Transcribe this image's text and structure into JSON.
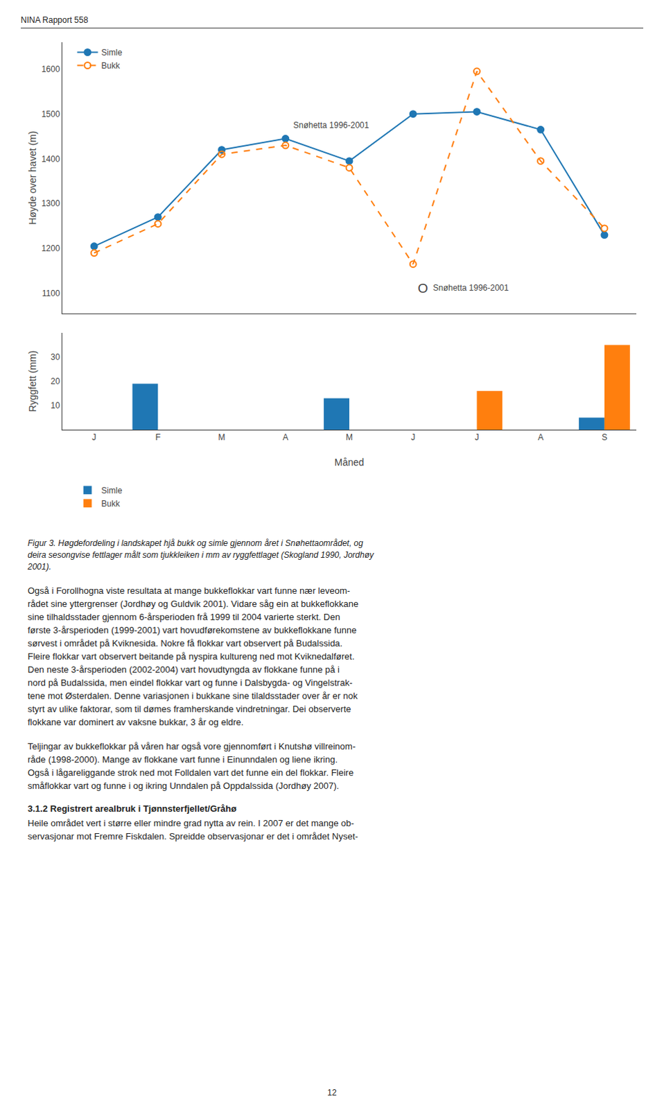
{
  "header": "NINA Rapport 558",
  "chart_data": [
    {
      "type": "line",
      "x": [
        0,
        1,
        2,
        3,
        4,
        5,
        6,
        7,
        8
      ],
      "xlim": [
        -0.5,
        8.5
      ],
      "ylabel": "Høyde over havet (m)",
      "ylim": [
        1055,
        1660
      ],
      "yticks": [
        1100,
        1200,
        1300,
        1400,
        1500,
        1600
      ],
      "tick_labels": "y",
      "grid": false,
      "legend": "upper left",
      "series": [
        {
          "name": "Simle",
          "color": "#1f77b4",
          "marker": "circle",
          "line_style": "solid",
          "values": [
            1205,
            1270,
            1420,
            1445,
            1395,
            1500,
            1505,
            1465,
            1230
          ]
        },
        {
          "name": "Bukk",
          "color": "#ff7f0e",
          "marker": "circle-open",
          "line_style": "dash",
          "values": [
            1190,
            1255,
            1410,
            1430,
            1380,
            1165,
            1595,
            1395,
            1245
          ]
        }
      ],
      "annotations": [
        {
          "text": "Snøhetta 1996-2001",
          "x": 3.1,
          "y": 1475
        },
        {
          "symbol": "O",
          "text": "Snøhetta 1996-2001",
          "x": 5.05,
          "y": 1112
        }
      ]
    },
    {
      "type": "bar",
      "categories": [
        "J",
        "F",
        "M",
        "A",
        "M",
        "J",
        "J",
        "A",
        "S"
      ],
      "xlabel": "Måned",
      "ylabel": "Ryggfett (mm)",
      "ylim": [
        0,
        40
      ],
      "yticks": [
        10,
        20,
        30
      ],
      "grid": false,
      "legend": "bottom",
      "series": [
        {
          "name": "Simle",
          "color": "#1f77b4",
          "values": [
            0,
            19,
            0,
            0,
            13,
            0,
            0,
            0,
            5
          ]
        },
        {
          "name": "Bukk",
          "color": "#ff7f0e",
          "values": [
            0,
            0,
            0,
            0,
            0,
            0,
            16,
            0,
            35
          ]
        }
      ]
    }
  ],
  "caption": [
    "Figur 3.  Høgdefordeling i landskapet hjå bukk og simle gjennom året i Snøhettaområdet, og",
    "deira sesongvise fettlager målt som tjukkleiken i mm av ryggfettlaget (Skogland 1990, Jordhøy",
    "2001)."
  ],
  "body": [
    {
      "lines": [
        "Også i Forollhogna viste resultata at mange bukkeflokkar vart funne nær leveom-",
        "rådet sine yttergrenser (Jordhøy og Guldvik 2001). Vidare såg ein at bukkeflokkane",
        "sine tilhaldsstader gjennom 6-årsperioden frå 1999 til 2004 varierte sterkt. Den",
        "første 3-årsperioden (1999-2001) vart hovudførekomstene av bukkeflokkane funne",
        "sørvest i området på Kviknesida. Nokre få flokkar vart observert på Budalssida.",
        "Fleire flokkar vart observert beitande på nyspira kultureng ned mot Kviknedalføret.",
        "Den neste 3-årsperioden (2002-2004) vart hovudtyngda av flokkane funne på i",
        "nord på Budalssida, men eindel flokkar vart og funne i Dalsbygda- og Vingelstrak-",
        "tene mot Østerdalen. Denne variasjonen i bukkane sine tilaldsstader over år er nok",
        "styrt av ulike faktorar, som til dømes framherskande vindretningar. Dei observerte",
        "flokkane var dominert av vaksne bukkar, 3 år og eldre."
      ]
    },
    {
      "lines": [
        "Teljingar av bukkeflokkar på våren har også vore gjennomført i Knutshø villreinom-",
        "råde (1998-2000). Mange av flokkane vart funne i Einunndalen og liene ikring.",
        "Også i lågareliggande strok ned mot Folldalen vart det funne ein del flokkar. Fleire",
        "småflokkar vart og funne i og ikring Unndalen på Oppdalssida (Jordhøy 2007)."
      ]
    },
    {
      "heading": "3.1.2 Registrert arealbruk i Tjønnsterfjellet/Gråhø",
      "lines": [
        "Heile området vert i større eller mindre grad nytta av rein. I 2007 er det mange ob-",
        "servasjonar mot Fremre Fiskdalen. Spreidde observasjonar er det i området Nyset-"
      ]
    }
  ],
  "page_number": "12"
}
